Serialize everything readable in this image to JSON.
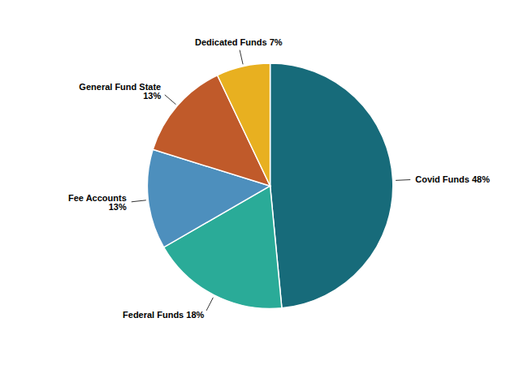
{
  "chart_data": {
    "type": "pie",
    "categories": [
      "Covid Funds",
      "Federal Funds",
      "Fee Accounts",
      "General Fund State",
      "Dedicated Funds"
    ],
    "values": [
      48,
      18,
      13,
      13,
      7
    ],
    "colors": [
      "#176b7a",
      "#2aab98",
      "#4d8fbd",
      "#c05a2a",
      "#e8b020"
    ],
    "value_labels": [
      "Covid Funds 48%",
      "Federal Funds 18%",
      "Fee Accounts\n13%",
      "General Fund State\n13%",
      "Dedicated Funds 7%"
    ],
    "data_labels": true
  }
}
